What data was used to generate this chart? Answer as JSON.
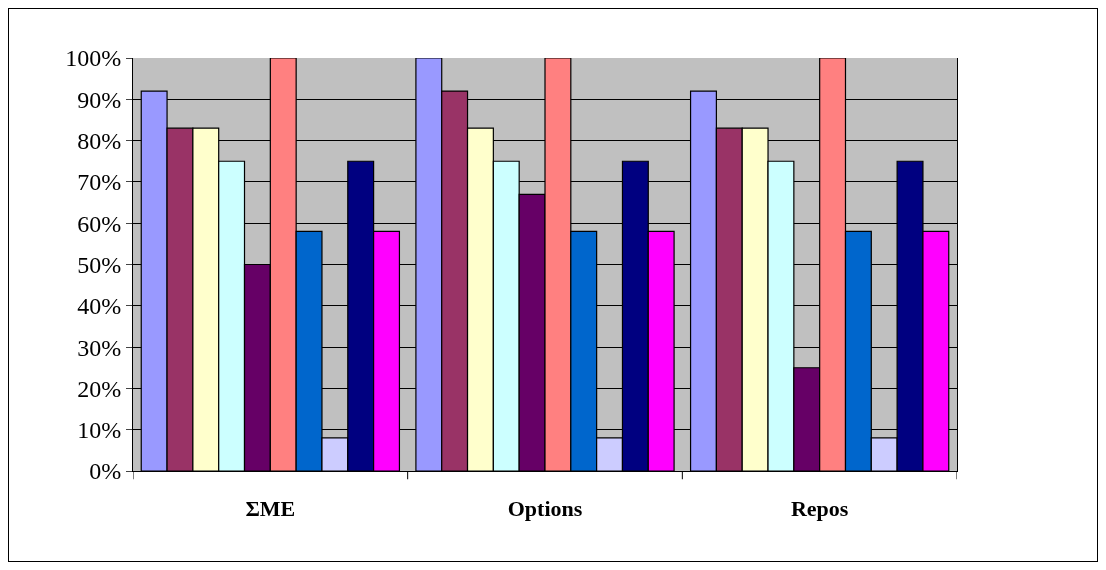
{
  "chart_data": {
    "type": "bar",
    "categories": [
      "ΣΜΕ",
      "Options",
      "Repos"
    ],
    "series": [
      {
        "color": "#9999ff",
        "values": [
          92,
          100,
          92
        ]
      },
      {
        "color": "#993366",
        "values": [
          83,
          92,
          83
        ]
      },
      {
        "color": "#ffffcc",
        "values": [
          83,
          83,
          83
        ]
      },
      {
        "color": "#ccffff",
        "values": [
          75,
          75,
          75
        ]
      },
      {
        "color": "#660066",
        "values": [
          50,
          67,
          25
        ]
      },
      {
        "color": "#ff8080",
        "values": [
          100,
          100,
          100
        ]
      },
      {
        "color": "#0066cc",
        "values": [
          58,
          58,
          58
        ]
      },
      {
        "color": "#ccccff",
        "values": [
          8,
          8,
          8
        ]
      },
      {
        "color": "#000080",
        "values": [
          75,
          75,
          75
        ]
      },
      {
        "color": "#ff00ff",
        "values": [
          58,
          58,
          58
        ]
      }
    ],
    "ylim": [
      0,
      100
    ],
    "yticks": [
      {
        "value": 0,
        "label": "0%"
      },
      {
        "value": 10,
        "label": "10%"
      },
      {
        "value": 20,
        "label": "20%"
      },
      {
        "value": 30,
        "label": "30%"
      },
      {
        "value": 40,
        "label": "40%"
      },
      {
        "value": 50,
        "label": "50%"
      },
      {
        "value": 60,
        "label": "60%"
      },
      {
        "value": 70,
        "label": "70%"
      },
      {
        "value": 80,
        "label": "80%"
      },
      {
        "value": 90,
        "label": "90%"
      },
      {
        "value": 100,
        "label": "100%"
      }
    ],
    "grid": "y"
  }
}
